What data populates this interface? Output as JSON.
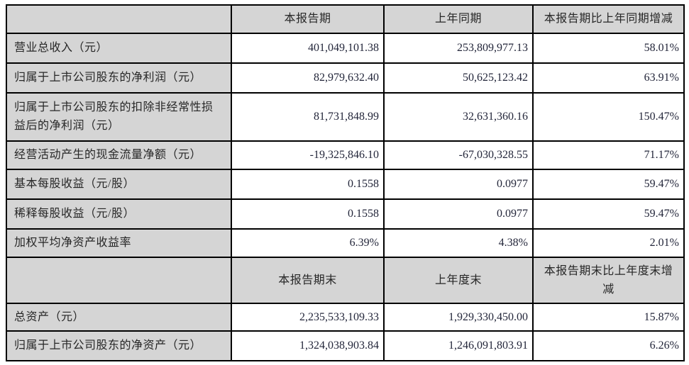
{
  "colors": {
    "header_bg": "#d5d5d5",
    "label_bg": "#d5d5d5",
    "border": "#000000",
    "label_text": "#272727",
    "number_text": "#23263a",
    "page_bg": "#ffffff"
  },
  "section1": {
    "header": {
      "label": "",
      "current": "本报告期",
      "prior": "上年同期",
      "change": "本报告期比上年同期增减"
    },
    "rows": [
      {
        "label": "营业总收入（元）",
        "current": "401,049,101.38",
        "prior": "253,809,977.13",
        "change": "58.01%"
      },
      {
        "label": "归属于上市公司股东的净利润（元）",
        "current": "82,979,632.40",
        "prior": "50,625,123.42",
        "change": "63.91%"
      },
      {
        "label": "归属于上市公司股东的扣除非经常性损益后的净利润（元）",
        "current": "81,731,848.99",
        "prior": "32,631,360.16",
        "change": "150.47%"
      },
      {
        "label": "经营活动产生的现金流量净额（元）",
        "current": "-19,325,846.10",
        "prior": "-67,030,328.55",
        "change": "71.17%"
      },
      {
        "label": "基本每股收益（元/股）",
        "current": "0.1558",
        "prior": "0.0977",
        "change": "59.47%"
      },
      {
        "label": "稀释每股收益（元/股）",
        "current": "0.1558",
        "prior": "0.0977",
        "change": "59.47%"
      },
      {
        "label": "加权平均净资产收益率",
        "current": "6.39%",
        "prior": "4.38%",
        "change": "2.01%"
      }
    ]
  },
  "section2": {
    "header": {
      "label": "",
      "current": "本报告期末",
      "prior": "上年度末",
      "change": "本报告期末比上年度末增减"
    },
    "rows": [
      {
        "label": "总资产（元）",
        "current": "2,235,533,109.33",
        "prior": "1,929,330,450.00",
        "change": "15.87%"
      },
      {
        "label": "归属于上市公司股东的净资产（元）",
        "current": "1,324,038,903.84",
        "prior": "1,246,091,803.91",
        "change": "6.26%"
      }
    ]
  }
}
